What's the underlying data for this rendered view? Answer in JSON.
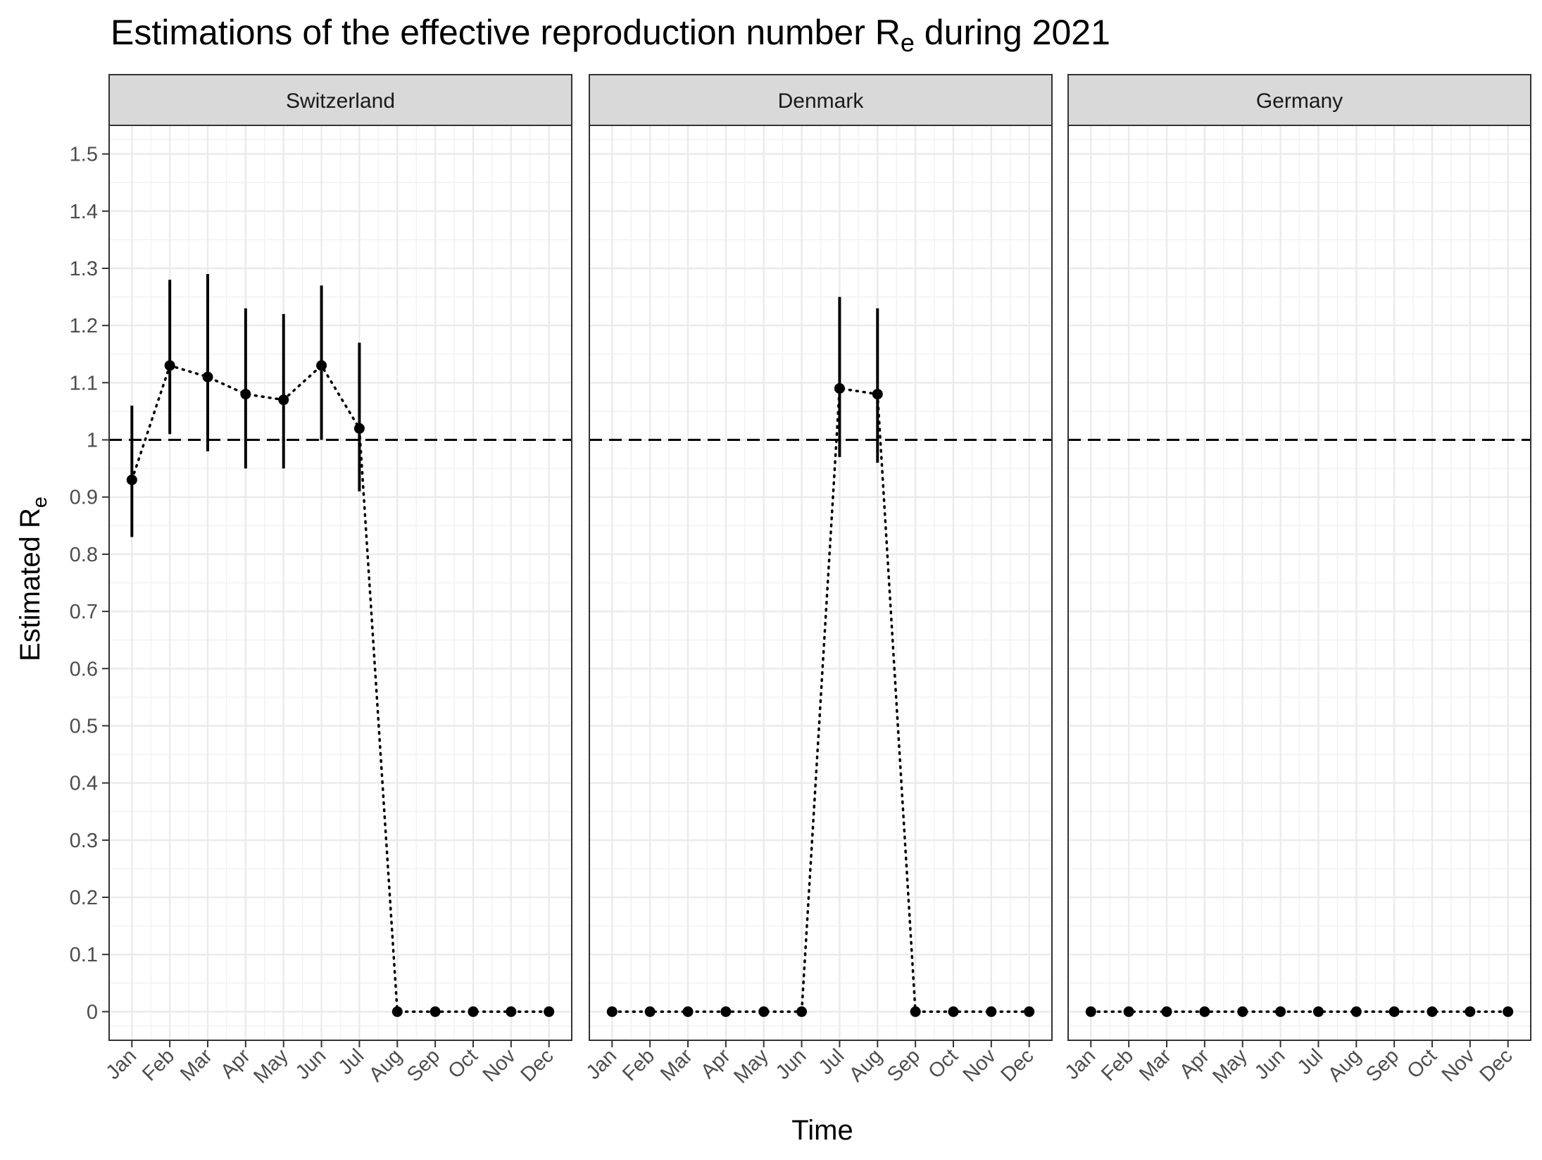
{
  "chart_data": {
    "type": "scatter",
    "title": {
      "main": "Estimations of the effective reproduction number R",
      "sub": "e",
      "tail": " during 2021"
    },
    "xlabel": "Time",
    "ylabel": {
      "main": "Estimated R",
      "sub": "e"
    },
    "ylim": [
      -0.05,
      1.55
    ],
    "yticks": [
      0,
      0.1,
      0.2,
      0.3,
      0.4,
      0.5,
      0.6,
      0.7,
      0.8,
      0.9,
      1,
      1.1,
      1.2,
      1.3,
      1.4,
      1.5
    ],
    "categories": [
      "Jan",
      "Feb",
      "Mar",
      "Apr",
      "May",
      "Jun",
      "Jul",
      "Aug",
      "Sep",
      "Oct",
      "Nov",
      "Dec"
    ],
    "reference_line": 1,
    "grid": true,
    "panels": [
      {
        "name": "Switzerland",
        "values": [
          0.93,
          1.13,
          1.11,
          1.08,
          1.07,
          1.13,
          1.02,
          0,
          0,
          0,
          0,
          0
        ],
        "lower": [
          0.83,
          1.01,
          0.98,
          0.95,
          0.95,
          1.0,
          0.91,
          null,
          null,
          null,
          null,
          null
        ],
        "upper": [
          1.06,
          1.28,
          1.29,
          1.23,
          1.22,
          1.27,
          1.17,
          null,
          null,
          null,
          null,
          null
        ]
      },
      {
        "name": "Denmark",
        "values": [
          0,
          0,
          0,
          0,
          0,
          0,
          1.09,
          1.08,
          0,
          0,
          0,
          0
        ],
        "lower": [
          null,
          null,
          null,
          null,
          null,
          null,
          0.97,
          0.96,
          null,
          null,
          null,
          null
        ],
        "upper": [
          null,
          null,
          null,
          null,
          null,
          null,
          1.25,
          1.23,
          null,
          null,
          null,
          null
        ]
      },
      {
        "name": "Germany",
        "values": [
          0,
          0,
          0,
          0,
          0,
          0,
          0,
          0,
          0,
          0,
          0,
          0
        ],
        "lower": [
          null,
          null,
          null,
          null,
          null,
          null,
          null,
          null,
          null,
          null,
          null,
          null
        ],
        "upper": [
          null,
          null,
          null,
          null,
          null,
          null,
          null,
          null,
          null,
          null,
          null,
          null
        ]
      }
    ]
  }
}
